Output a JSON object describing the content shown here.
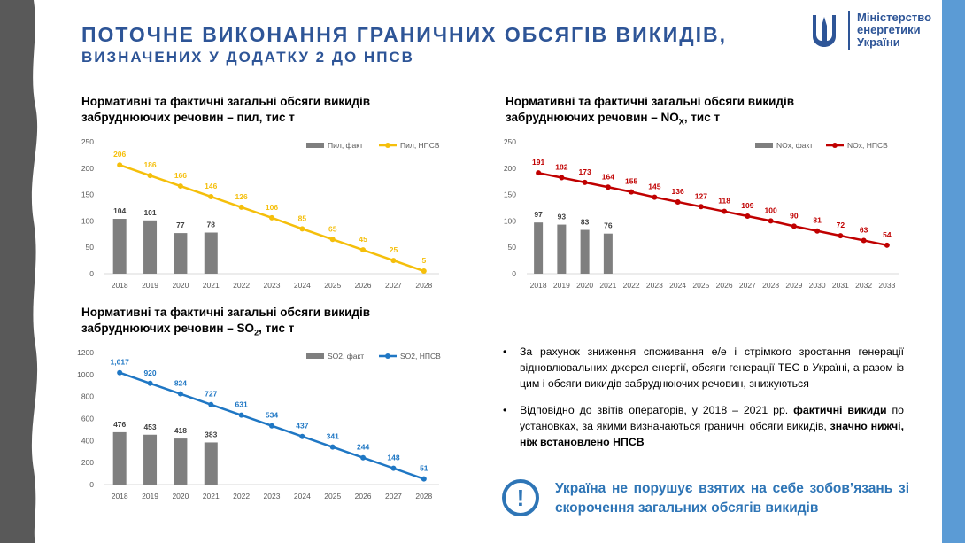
{
  "header": {
    "title_line1": "ПОТОЧНЕ ВИКОНАННЯ ГРАНИЧНИХ ОБСЯГІВ ВИКИДІВ,",
    "title_line2": "ВИЗНАЧЕНИХ У ДОДАТКУ 2 ДО НПСВ"
  },
  "logo": {
    "line1": "Міністерство",
    "line2": "енергетики",
    "line3": "України",
    "icon": "trident-icon"
  },
  "colors": {
    "title_blue": "#2e5597",
    "bar_gray": "#7f7f7f",
    "dust_line": "#f5bf0b",
    "nox_line": "#c00000",
    "so2_line": "#1f77c4",
    "callout_blue": "#2e75b6"
  },
  "charts": {
    "dust": {
      "title_a": "Нормативні та фактичні загальні обсяги викидів",
      "title_b": "забруднюючих речовин – пил, тис т"
    },
    "nox": {
      "title_a": "Нормативні та фактичні загальні обсяги викидів",
      "title_b_pre": "забруднюючих речовин – NO",
      "title_b_sub": "X",
      "title_b_post": ", тис т"
    },
    "so2": {
      "title_a": "Нормативні та фактичні загальні обсяги викидів",
      "title_b_pre": "забруднюючих речовин – SO",
      "title_b_sub": "2",
      "title_b_post": ", тис т"
    }
  },
  "chart_data": [
    {
      "id": "dust",
      "type": "bar",
      "categories": [
        "2018",
        "2019",
        "2020",
        "2021",
        "2022",
        "2023",
        "2024",
        "2025",
        "2026",
        "2027",
        "2028"
      ],
      "series": [
        {
          "name": "Пил, факт",
          "kind": "bar",
          "values": [
            104,
            101,
            77,
            78,
            null,
            null,
            null,
            null,
            null,
            null,
            null
          ]
        },
        {
          "name": "Пил, НПСВ",
          "kind": "line",
          "values": [
            206,
            186,
            166,
            146,
            126,
            106,
            85,
            65,
            45,
            25,
            5
          ]
        }
      ],
      "ylim": [
        0,
        250
      ],
      "yticks": [
        0,
        50,
        100,
        150,
        200,
        250
      ],
      "grid": false,
      "legend": "top-right"
    },
    {
      "id": "nox",
      "type": "bar",
      "categories": [
        "2018",
        "2019",
        "2020",
        "2021",
        "2022",
        "2023",
        "2024",
        "2025",
        "2026",
        "2027",
        "2028",
        "2029",
        "2030",
        "2031",
        "2032",
        "2033"
      ],
      "series": [
        {
          "name": "NOx, факт",
          "kind": "bar",
          "values": [
            97,
            93,
            83,
            76,
            null,
            null,
            null,
            null,
            null,
            null,
            null,
            null,
            null,
            null,
            null,
            null
          ]
        },
        {
          "name": "NOx, НПСВ",
          "kind": "line",
          "values": [
            191,
            182,
            173,
            164,
            155,
            145,
            136,
            127,
            118,
            109,
            100,
            90,
            81,
            72,
            63,
            54
          ]
        }
      ],
      "ylim": [
        0,
        250
      ],
      "yticks": [
        0,
        50,
        100,
        150,
        200,
        250
      ],
      "grid": false,
      "legend": "top-right"
    },
    {
      "id": "so2",
      "type": "bar",
      "categories": [
        "2018",
        "2019",
        "2020",
        "2021",
        "2022",
        "2023",
        "2024",
        "2025",
        "2026",
        "2027",
        "2028"
      ],
      "series": [
        {
          "name": "SO2, факт",
          "kind": "bar",
          "values": [
            476,
            453,
            418,
            383,
            null,
            null,
            null,
            null,
            null,
            null,
            null
          ]
        },
        {
          "name": "SO2, НПСВ",
          "kind": "line",
          "values": [
            1017,
            920,
            824,
            727,
            631,
            534,
            437,
            341,
            244,
            148,
            51
          ],
          "labels": [
            "1,017",
            "920",
            "824",
            "727",
            "631",
            "534",
            "437",
            "341",
            "244",
            "148",
            "51"
          ]
        }
      ],
      "ylim": [
        0,
        1200
      ],
      "yticks": [
        0,
        200,
        400,
        600,
        800,
        1000,
        1200
      ],
      "grid": false,
      "legend": "top-right"
    }
  ],
  "bullets": [
    {
      "dot": "•",
      "text": "За рахунок зниження споживання е/е і стрімкого зростання генерації відновлювальних джерел енергії, обсяги генерації ТЕС в Україні, а разом із цим і обсяги викидів забруднюючих речовин, знижуються"
    },
    {
      "dot": "•",
      "text_a": "Відповідно до звітів операторів, у 2018 – 2021 рр. ",
      "bold_a": "фактичні викиди",
      "text_b": " по установках, за якими визначаються граничні обсяги викидів, ",
      "bold_b": "значно нижчі, ніж встановлено НПСВ"
    }
  ],
  "callout": {
    "icon": "exclamation-circle-icon",
    "symbol": "!",
    "text": "Україна не порушує взятих на себе зобов’язань зі скорочення загальних обсягів викидів"
  }
}
